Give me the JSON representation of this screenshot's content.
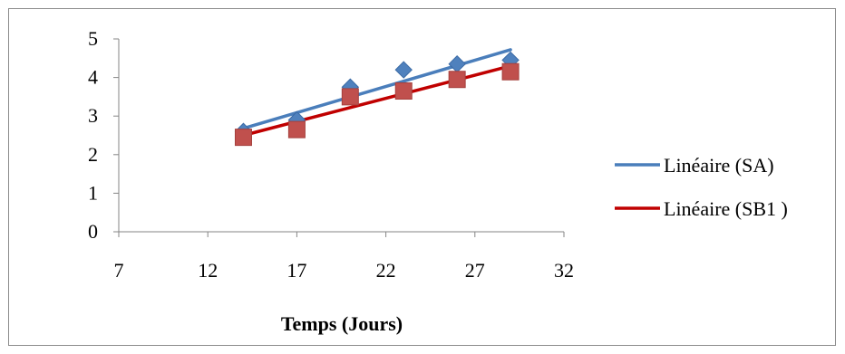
{
  "chart_data": {
    "type": "scatter",
    "title": "",
    "xlabel": "Temps (Jours)",
    "ylabel": "",
    "xlim": [
      7,
      32
    ],
    "ylim": [
      0,
      5
    ],
    "xticks": [
      7,
      12,
      17,
      22,
      27,
      32
    ],
    "yticks": [
      0,
      1,
      2,
      3,
      4,
      5
    ],
    "grid": false,
    "legend_position": "right",
    "series": [
      {
        "key": "SA",
        "color": "#4f81bd",
        "marker": "diamond",
        "x": [
          14,
          17,
          20,
          23,
          26,
          29
        ],
        "y": [
          2.6,
          2.9,
          3.75,
          4.2,
          4.35,
          4.45
        ],
        "trendline": {
          "name": "Linéaire (SA)",
          "color": "#4a7ebb",
          "x": [
            14,
            29
          ],
          "y": [
            2.68,
            4.72
          ]
        }
      },
      {
        "key": "SB1",
        "color": "#c0504d",
        "marker": "square",
        "x": [
          14,
          17,
          20,
          23,
          26,
          29
        ],
        "y": [
          2.45,
          2.65,
          3.5,
          3.65,
          3.95,
          4.15
        ],
        "trendline": {
          "name": "Linéaire (SB1 )",
          "color": "#c00000",
          "x": [
            14,
            29
          ],
          "y": [
            2.5,
            4.3
          ]
        }
      }
    ]
  }
}
